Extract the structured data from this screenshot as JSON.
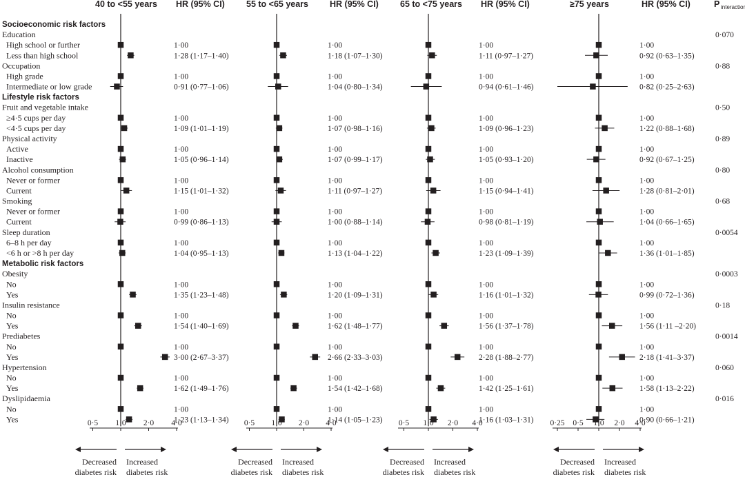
{
  "chart_data": {
    "type": "forest",
    "hr_header": "HR (95% CI)",
    "p_header_main": "P",
    "p_header_sub": "interaction",
    "decreased_label": [
      "Decreased",
      "diabetes risk"
    ],
    "increased_label": [
      "Increased",
      "diabetes risk"
    ],
    "panels": [
      {
        "title": "40 to <55 years",
        "ticks": [
          0.5,
          1,
          2,
          4
        ],
        "tick_labels": [
          "0·5",
          "1·0",
          "2·0",
          "4·0"
        ]
      },
      {
        "title": "55 to <65 years",
        "ticks": [
          0.5,
          1,
          2,
          4
        ],
        "tick_labels": [
          "0·5",
          "1·0",
          "2·0",
          "4·0"
        ]
      },
      {
        "title": "65 to <75 years",
        "ticks": [
          0.5,
          1,
          2,
          4
        ],
        "tick_labels": [
          "0·5",
          "1·0",
          "2·0",
          "4·0"
        ]
      },
      {
        "title": "≥75 years",
        "ticks": [
          0.25,
          0.5,
          1,
          2,
          4
        ],
        "tick_labels": [
          "0·25",
          "0·5",
          "1·0",
          "2·0",
          "4·0"
        ]
      }
    ],
    "rows": [
      {
        "type": "section",
        "label": "Socioeconomic risk factors"
      },
      {
        "type": "group",
        "label": "Education",
        "p": "0·070"
      },
      {
        "type": "item",
        "label": "High school or further",
        "hr": [
          [
            1,
            1,
            1
          ],
          [
            1,
            1,
            1
          ],
          [
            1,
            1,
            1
          ],
          [
            1,
            1,
            1
          ]
        ],
        "text": [
          "1·00",
          "1·00",
          "1·00",
          "1·00"
        ]
      },
      {
        "type": "item",
        "label": "Less than high school",
        "hr": [
          [
            1.28,
            1.17,
            1.4
          ],
          [
            1.18,
            1.07,
            1.3
          ],
          [
            1.11,
            0.97,
            1.27
          ],
          [
            0.92,
            0.63,
            1.35
          ]
        ],
        "text": [
          "1·28 (1·17–1·40)",
          "1·18 (1·07–1·30)",
          "1·11 (0·97–1·27)",
          "0·92 (0·63–1·35)"
        ]
      },
      {
        "type": "group",
        "label": "Occupation",
        "p": "0·88"
      },
      {
        "type": "item",
        "label": "High grade",
        "hr": [
          [
            1,
            1,
            1
          ],
          [
            1,
            1,
            1
          ],
          [
            1,
            1,
            1
          ],
          [
            1,
            1,
            1
          ]
        ],
        "text": [
          "1·00",
          "1·00",
          "1·00",
          "1·00"
        ]
      },
      {
        "type": "item",
        "label": "Intermediate or low grade",
        "hr": [
          [
            0.91,
            0.77,
            1.06
          ],
          [
            1.04,
            0.8,
            1.34
          ],
          [
            0.94,
            0.61,
            1.46
          ],
          [
            0.82,
            0.25,
            2.63
          ]
        ],
        "text": [
          "0·91 (0·77–1·06)",
          "1·04 (0·80–1·34)",
          "0·94 (0·61–1·46)",
          "0·82 (0·25–2·63)"
        ]
      },
      {
        "type": "section",
        "label": "Lifestyle risk factors"
      },
      {
        "type": "group",
        "label": "Fruit and vegetable intake",
        "p": "0·50"
      },
      {
        "type": "item",
        "label": "≥4·5 cups per day",
        "hr": [
          [
            1,
            1,
            1
          ],
          [
            1,
            1,
            1
          ],
          [
            1,
            1,
            1
          ],
          [
            1,
            1,
            1
          ]
        ],
        "text": [
          "1·00",
          "1·00",
          "1·00",
          "1·00"
        ]
      },
      {
        "type": "item",
        "label": "<4·5 cups per day",
        "hr": [
          [
            1.09,
            1.01,
            1.19
          ],
          [
            1.07,
            0.98,
            1.16
          ],
          [
            1.09,
            0.96,
            1.23
          ],
          [
            1.22,
            0.88,
            1.68
          ]
        ],
        "text": [
          "1·09 (1·01–1·19)",
          "1·07 (0·98–1·16)",
          "1·09 (0·96–1·23)",
          "1·22 (0·88–1·68)"
        ]
      },
      {
        "type": "group",
        "label": "Physical activity",
        "p": "0·89"
      },
      {
        "type": "item",
        "label": "Active",
        "hr": [
          [
            1,
            1,
            1
          ],
          [
            1,
            1,
            1
          ],
          [
            1,
            1,
            1
          ],
          [
            1,
            1,
            1
          ]
        ],
        "text": [
          "1·00",
          "1·00",
          "1·00",
          "1·00"
        ]
      },
      {
        "type": "item",
        "label": "Inactive",
        "hr": [
          [
            1.05,
            0.96,
            1.14
          ],
          [
            1.07,
            0.99,
            1.17
          ],
          [
            1.05,
            0.93,
            1.2
          ],
          [
            0.92,
            0.67,
            1.25
          ]
        ],
        "text": [
          "1·05 (0·96–1·14)",
          "1·07 (0·99–1·17)",
          "1·05 (0·93–1·20)",
          "0·92 (0·67–1·25)"
        ]
      },
      {
        "type": "group",
        "label": "Alcohol consumption",
        "p": "0·80"
      },
      {
        "type": "item",
        "label": "Never or former",
        "hr": [
          [
            1,
            1,
            1
          ],
          [
            1,
            1,
            1
          ],
          [
            1,
            1,
            1
          ],
          [
            1,
            1,
            1
          ]
        ],
        "text": [
          "1·00",
          "1·00",
          "1·00",
          "1·00"
        ]
      },
      {
        "type": "item",
        "label": "Current",
        "hr": [
          [
            1.15,
            1.01,
            1.32
          ],
          [
            1.11,
            0.97,
            1.27
          ],
          [
            1.15,
            0.94,
            1.41
          ],
          [
            1.28,
            0.81,
            2.01
          ]
        ],
        "text": [
          "1·15 (1·01–1·32)",
          "1·11 (0·97–1·27)",
          "1·15 (0·94–1·41)",
          "1·28 (0·81–2·01)"
        ]
      },
      {
        "type": "group",
        "label": "Smoking",
        "p": "0·68"
      },
      {
        "type": "item",
        "label": "Never or former",
        "hr": [
          [
            1,
            1,
            1
          ],
          [
            1,
            1,
            1
          ],
          [
            1,
            1,
            1
          ],
          [
            1,
            1,
            1
          ]
        ],
        "text": [
          "1·00",
          "1·00",
          "1·00",
          "1·00"
        ]
      },
      {
        "type": "item",
        "label": "Current",
        "hr": [
          [
            0.99,
            0.86,
            1.13
          ],
          [
            1.0,
            0.88,
            1.14
          ],
          [
            0.98,
            0.81,
            1.19
          ],
          [
            1.04,
            0.66,
            1.65
          ]
        ],
        "text": [
          "0·99 (0·86–1·13)",
          "1·00 (0·88–1·14)",
          "0·98 (0·81–1·19)",
          "1·04 (0·66–1·65)"
        ]
      },
      {
        "type": "group",
        "label": "Sleep duration",
        "p": "0·0054"
      },
      {
        "type": "item",
        "label": "6–8 h  per day",
        "hr": [
          [
            1,
            1,
            1
          ],
          [
            1,
            1,
            1
          ],
          [
            1,
            1,
            1
          ],
          [
            1,
            1,
            1
          ]
        ],
        "text": [
          "1·00",
          "1·00",
          "1·00",
          "1·00"
        ]
      },
      {
        "type": "item",
        "label": "<6 h or >8 h per day",
        "hr": [
          [
            1.04,
            0.95,
            1.13
          ],
          [
            1.13,
            1.04,
            1.22
          ],
          [
            1.23,
            1.09,
            1.39
          ],
          [
            1.36,
            1.01,
            1.85
          ]
        ],
        "text": [
          "1·04 (0·95–1·13)",
          "1·13 (1·04–1·22)",
          "1·23 (1·09–1·39)",
          "1·36 (1·01–1·85)"
        ]
      },
      {
        "type": "section",
        "label": "Metabolic risk factors"
      },
      {
        "type": "group",
        "label": "Obesity",
        "p": "0·0003"
      },
      {
        "type": "item",
        "label": "No",
        "hr": [
          [
            1,
            1,
            1
          ],
          [
            1,
            1,
            1
          ],
          [
            1,
            1,
            1
          ],
          [
            1,
            1,
            1
          ]
        ],
        "text": [
          "1·00",
          "1·00",
          "1·00",
          "1·00"
        ]
      },
      {
        "type": "item",
        "label": "Yes",
        "hr": [
          [
            1.35,
            1.23,
            1.48
          ],
          [
            1.2,
            1.09,
            1.31
          ],
          [
            1.16,
            1.01,
            1.32
          ],
          [
            0.99,
            0.72,
            1.36
          ]
        ],
        "text": [
          "1·35 (1·23–1·48)",
          "1·20 (1·09–1·31)",
          "1·16 (1·01–1·32)",
          "0·99 (0·72–1·36)"
        ]
      },
      {
        "type": "group",
        "label": "Insulin resistance",
        "p": "0·18"
      },
      {
        "type": "item",
        "label": "No",
        "hr": [
          [
            1,
            1,
            1
          ],
          [
            1,
            1,
            1
          ],
          [
            1,
            1,
            1
          ],
          [
            1,
            1,
            1
          ]
        ],
        "text": [
          "1·00",
          "1·00",
          "1·00",
          "1·00"
        ]
      },
      {
        "type": "item",
        "label": "Yes",
        "hr": [
          [
            1.54,
            1.4,
            1.69
          ],
          [
            1.62,
            1.48,
            1.77
          ],
          [
            1.56,
            1.37,
            1.78
          ],
          [
            1.56,
            1.11,
            2.2
          ]
        ],
        "text": [
          "1·54 (1·40–1·69)",
          "1·62 (1·48–1·77)",
          "1·56 (1·37–1·78)",
          "1·56 (1·11 –2·20)"
        ]
      },
      {
        "type": "group",
        "label": "Prediabetes",
        "p": "0·0014"
      },
      {
        "type": "item",
        "label": "No",
        "hr": [
          [
            1,
            1,
            1
          ],
          [
            1,
            1,
            1
          ],
          [
            1,
            1,
            1
          ],
          [
            1,
            1,
            1
          ]
        ],
        "text": [
          "1·00",
          "1·00",
          "1·00",
          "1·00"
        ]
      },
      {
        "type": "item",
        "label": "Yes",
        "hr": [
          [
            3.0,
            2.67,
            3.37
          ],
          [
            2.66,
            2.33,
            3.03
          ],
          [
            2.28,
            1.88,
            2.77
          ],
          [
            2.18,
            1.41,
            3.37
          ]
        ],
        "text": [
          "3·00 (2·67–3·37)",
          "2·66 (2·33–3·03)",
          "2·28 (1·88–2·77)",
          "2·18 (1·41–3·37)"
        ]
      },
      {
        "type": "group",
        "label": "Hypertension",
        "p": "0·060"
      },
      {
        "type": "item",
        "label": "No",
        "hr": [
          [
            1,
            1,
            1
          ],
          [
            1,
            1,
            1
          ],
          [
            1,
            1,
            1
          ],
          [
            1,
            1,
            1
          ]
        ],
        "text": [
          "1·00",
          "1·00",
          "1·00",
          "1·00"
        ]
      },
      {
        "type": "item",
        "label": "Yes",
        "hr": [
          [
            1.62,
            1.49,
            1.76
          ],
          [
            1.54,
            1.42,
            1.68
          ],
          [
            1.42,
            1.25,
            1.61
          ],
          [
            1.58,
            1.13,
            2.22
          ]
        ],
        "text": [
          "1·62 (1·49–1·76)",
          "1·54 (1·42–1·68)",
          "1·42 (1·25–1·61)",
          "1·58 (1·13–2·22)"
        ]
      },
      {
        "type": "group",
        "label": "Dyslipidaemia",
        "p": "0·016"
      },
      {
        "type": "item",
        "label": "No",
        "hr": [
          [
            1,
            1,
            1
          ],
          [
            1,
            1,
            1
          ],
          [
            1,
            1,
            1
          ],
          [
            1,
            1,
            1
          ]
        ],
        "text": [
          "1·00",
          "1·00",
          "1·00",
          "1·00"
        ]
      },
      {
        "type": "item",
        "label": "Yes",
        "hr": [
          [
            1.23,
            1.13,
            1.34
          ],
          [
            1.14,
            1.05,
            1.23
          ],
          [
            1.16,
            1.03,
            1.31
          ],
          [
            0.9,
            0.66,
            1.21
          ]
        ],
        "text": [
          "1·23 (1·13–1·34)",
          "1·14 (1·05–1·23)",
          "1·16 (1·03–1·31)",
          "0·90 (0·66–1·21)"
        ]
      }
    ]
  }
}
